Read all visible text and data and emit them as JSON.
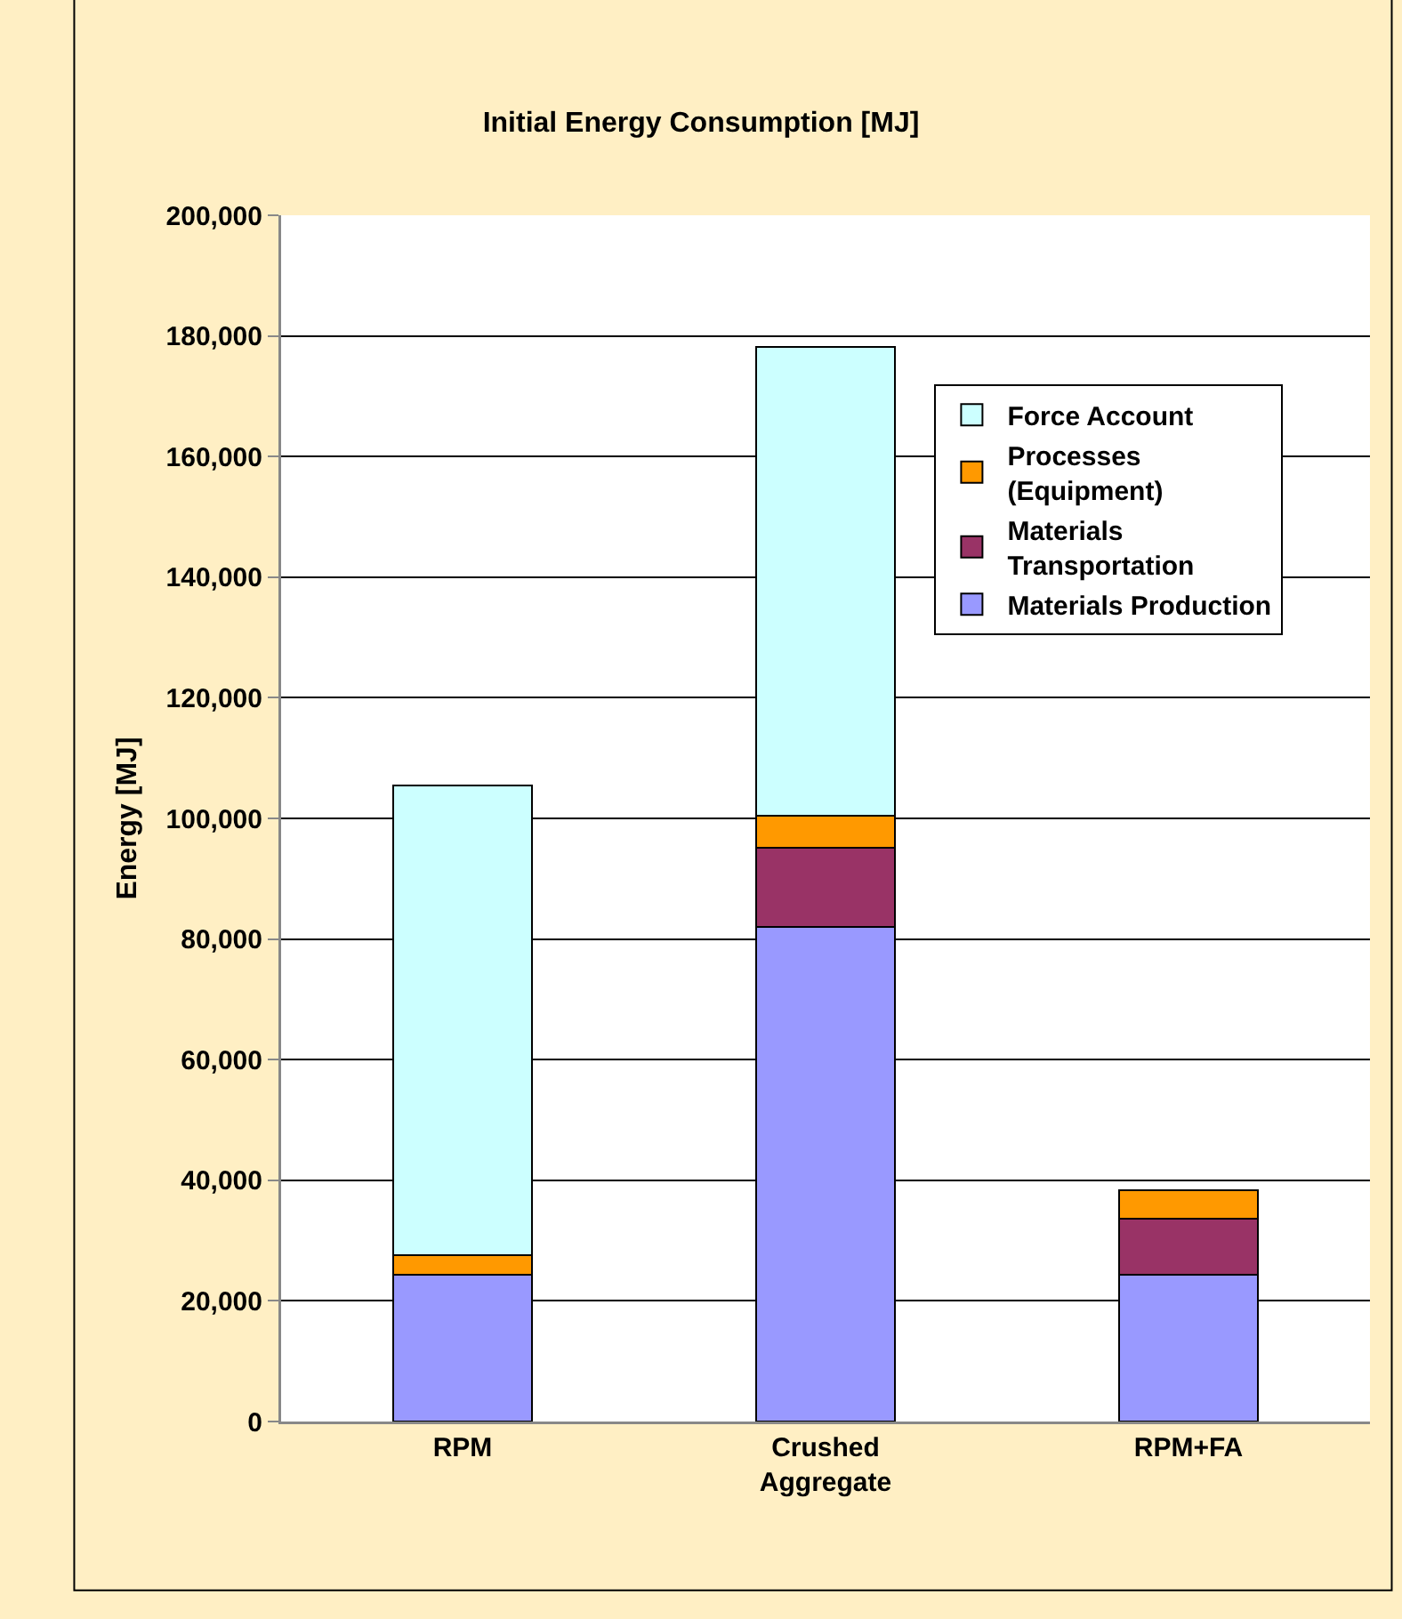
{
  "chart_data": {
    "type": "bar",
    "title": "Initial Energy Consumption [MJ]",
    "ylabel": "Energy [MJ]",
    "stacked": true,
    "categories": [
      "RPM",
      "Crushed Aggregate",
      "RPM+FA"
    ],
    "series": [
      {
        "name": "Materials Production",
        "color": "#9999ff",
        "values": [
          24300,
          82000,
          24400
        ]
      },
      {
        "name": "Materials Transportation",
        "color": "#993366",
        "values": [
          0,
          13100,
          9200
        ]
      },
      {
        "name": "Processes (Equipment)",
        "color": "#ff9900",
        "values": [
          3300,
          5400,
          4700
        ]
      },
      {
        "name": "Force Account",
        "color": "#ccffff",
        "values": [
          77900,
          77700,
          0
        ]
      }
    ],
    "ylim": [
      0,
      200000
    ],
    "yticks": [
      {
        "value": 0,
        "label": "0"
      },
      {
        "value": 20000,
        "label": "20,000"
      },
      {
        "value": 40000,
        "label": "40,000"
      },
      {
        "value": 60000,
        "label": "60,000"
      },
      {
        "value": 80000,
        "label": "80,000"
      },
      {
        "value": 100000,
        "label": "100,000"
      },
      {
        "value": 120000,
        "label": "120,000"
      },
      {
        "value": 140000,
        "label": "140,000"
      },
      {
        "value": 160000,
        "label": "160,000"
      },
      {
        "value": 180000,
        "label": "180,000"
      },
      {
        "value": 200000,
        "label": "200,000"
      }
    ],
    "grid": "y",
    "legend": "right"
  }
}
